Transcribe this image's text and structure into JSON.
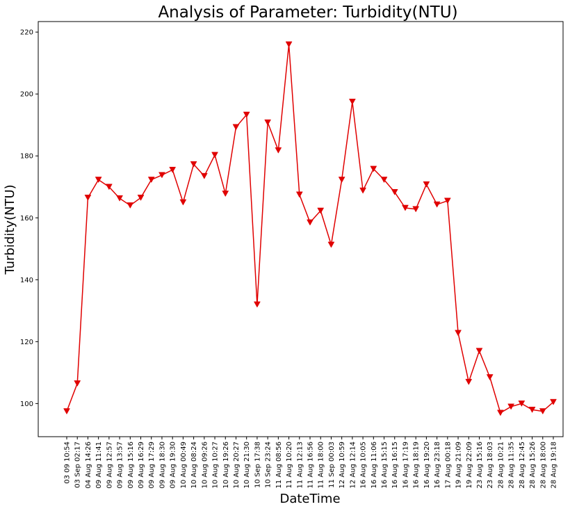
{
  "chart_data": {
    "type": "line",
    "title": "Analysis of Parameter: Turbidity(NTU)",
    "xlabel": "DateTime",
    "ylabel": "Turbidity(NTU)",
    "ylim": [
      89.3,
      223.4
    ],
    "yticks": [
      100,
      120,
      140,
      160,
      180,
      200,
      220
    ],
    "grid": false,
    "marker": "triangle-down",
    "color": "#e00000",
    "categories": [
      "03 09 10:54",
      "03 Sep 02:17",
      "04 Aug 14:26",
      "09 Aug 11:41",
      "09 Aug 12:57",
      "09 Aug 13:57",
      "09 Aug 15:16",
      "09 Aug 16:29",
      "09 Aug 17:29",
      "09 Aug 18:30",
      "09 Aug 19:30",
      "10 Aug 00:49",
      "10 Aug 08:24",
      "10 Aug 09:26",
      "10 Aug 10:27",
      "10 Aug 19:26",
      "10 Aug 20:27",
      "10 Aug 21:30",
      "10 Sep 17:38",
      "10 Sep 23:24",
      "11 Aug 08:56",
      "11 Aug 10:20",
      "11 Aug 12:13",
      "11 Aug 16:56",
      "11 Aug 18:00",
      "11 Sep 00:03",
      "12 Aug 10:59",
      "12 Aug 12:14",
      "16 Aug 10:05",
      "16 Aug 11:06",
      "16 Aug 15:15",
      "16 Aug 16:15",
      "16 Aug 17:19",
      "16 Aug 18:19",
      "16 Aug 19:20",
      "16 Aug 23:18",
      "17 Aug 00:18",
      "19 Aug 21:09",
      "19 Aug 22:09",
      "23 Aug 15:16",
      "23 Aug 18:03",
      "28 Aug 10:21",
      "28 Aug 11:35",
      "28 Aug 12:45",
      "28 Aug 15:26",
      "28 Aug 18:00",
      "28 Aug 19:18"
    ],
    "values": [
      97.5,
      106.5,
      166.5,
      172.3,
      170,
      166.3,
      164,
      166.5,
      172.3,
      173.8,
      175.5,
      165,
      177.3,
      173.5,
      180.3,
      167.8,
      189.3,
      193.3,
      132,
      190.8,
      181.8,
      216,
      167.5,
      158.5,
      162.3,
      151.3,
      172.3,
      197.5,
      168.8,
      175.8,
      172.3,
      168.3,
      163.2,
      162.8,
      170.8,
      164.3,
      165.5,
      122.8,
      107,
      117,
      108.5,
      97,
      99,
      100,
      98,
      97.5,
      100.5
    ]
  }
}
